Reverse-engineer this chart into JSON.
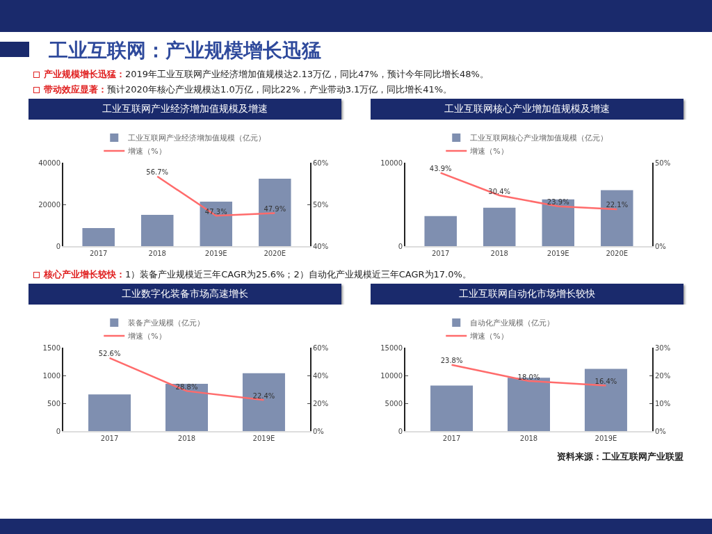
{
  "chart_data": [
    {
      "type": "other",
      "title": "工业互联网：产业规模增长迅猛",
      "annotations": [
        "产业规模增长迅猛：2019年工业互联网产业经济增加值规模达2.13万亿，同比47%，预计今年同比增长48%。",
        "带动效应显著：预计2020年核心产业规模达1.0万亿，同比22%，产业带动3.1万亿，同比增长41%。"
      ]
    },
    {
      "type": "bar",
      "title": "工业互联网产业经济增加值规模及增速",
      "categories": [
        "2017",
        "2018",
        "2019E",
        "2020E"
      ],
      "series": [
        {
          "name": "工业互联网产业经济增加值规模（亿元）",
          "color": "#7f8fb0",
          "values": [
            8700,
            15000,
            21300,
            32300
          ]
        },
        {
          "name": "增速（%）",
          "type": "line",
          "axis": "y2",
          "color": "#ff6b6b",
          "values": [
            null,
            56.7,
            47.3,
            47.9
          ],
          "value_labels": [
            null,
            "56.7%",
            "47.3%",
            "47.9%"
          ]
        }
      ],
      "ylim": [
        0,
        40000
      ],
      "yticks": [
        0,
        20000,
        40000
      ],
      "y2lim": [
        40,
        60
      ],
      "y2ticks": [
        {
          "value": 40,
          "label": "40%"
        },
        {
          "value": 50,
          "label": "50%"
        },
        {
          "value": 60,
          "label": "60%"
        }
      ],
      "legend": "top"
    },
    {
      "type": "bar",
      "title": "工业互联网核心产业增加值规模及增速",
      "categories": [
        "2017",
        "2018",
        "2019E",
        "2020E"
      ],
      "series": [
        {
          "name": "工业互联网核心产业增加值规模（亿元）",
          "color": "#7f8fb0",
          "values": [
            3600,
            4600,
            5600,
            6700
          ]
        },
        {
          "name": "增速（%）",
          "type": "line",
          "axis": "y2",
          "color": "#ff6b6b",
          "values": [
            43.9,
            30.4,
            23.9,
            22.1
          ],
          "value_labels": [
            "43.9%",
            "30.4%",
            "23.9%",
            "22.1%"
          ]
        }
      ],
      "ylim": [
        0,
        10000
      ],
      "yticks": [
        0,
        10000
      ],
      "y2lim": [
        0,
        50
      ],
      "y2ticks": [
        {
          "value": 0,
          "label": "0%"
        },
        {
          "value": 50,
          "label": "50%"
        }
      ],
      "legend": "top"
    },
    {
      "type": "other",
      "annotations": [
        "核心产业增长较快：1）装备产业规模近三年CAGR为25.6%；2）自动化产业规模近三年CAGR为17.0%。"
      ]
    },
    {
      "type": "bar",
      "title": "工业数字化装备市场高速增长",
      "categories": [
        "2017",
        "2018",
        "2019E"
      ],
      "series": [
        {
          "name": "装备产业规模（亿元）",
          "color": "#7f8fb0",
          "values": [
            660,
            850,
            1040
          ]
        },
        {
          "name": "增速（%）",
          "type": "line",
          "axis": "y2",
          "color": "#ff6b6b",
          "values": [
            52.6,
            28.8,
            22.4
          ],
          "value_labels": [
            "52.6%",
            "28.8%",
            "22.4%"
          ]
        }
      ],
      "ylim": [
        0,
        1500
      ],
      "yticks": [
        0,
        500,
        1000,
        1500
      ],
      "y2lim": [
        0,
        60
      ],
      "y2ticks": [
        {
          "value": 0,
          "label": "0%"
        },
        {
          "value": 20,
          "label": "20%"
        },
        {
          "value": 40,
          "label": "40%"
        },
        {
          "value": 60,
          "label": "60%"
        }
      ],
      "legend": "top"
    },
    {
      "type": "bar",
      "title": "工业互联网自动化市场增长较快",
      "categories": [
        "2017",
        "2018",
        "2019E"
      ],
      "series": [
        {
          "name": "自动化产业规模（亿元）",
          "color": "#7f8fb0",
          "values": [
            8200,
            9600,
            11200
          ]
        },
        {
          "name": "增速（%）",
          "type": "line",
          "axis": "y2",
          "color": "#ff6b6b",
          "values": [
            23.8,
            18.0,
            16.4
          ],
          "value_labels": [
            "23.8%",
            "18.0%",
            "16.4%"
          ]
        }
      ],
      "ylim": [
        0,
        15000
      ],
      "yticks": [
        0,
        5000,
        10000,
        15000
      ],
      "y2lim": [
        0,
        30
      ],
      "y2ticks": [
        {
          "value": 0,
          "label": "0%"
        },
        {
          "value": 10,
          "label": "10%"
        },
        {
          "value": 20,
          "label": "20%"
        },
        {
          "value": 30,
          "label": "30%"
        }
      ],
      "legend": "top",
      "annotations": [
        "资料来源：工业互联网产业联盟"
      ]
    }
  ]
}
